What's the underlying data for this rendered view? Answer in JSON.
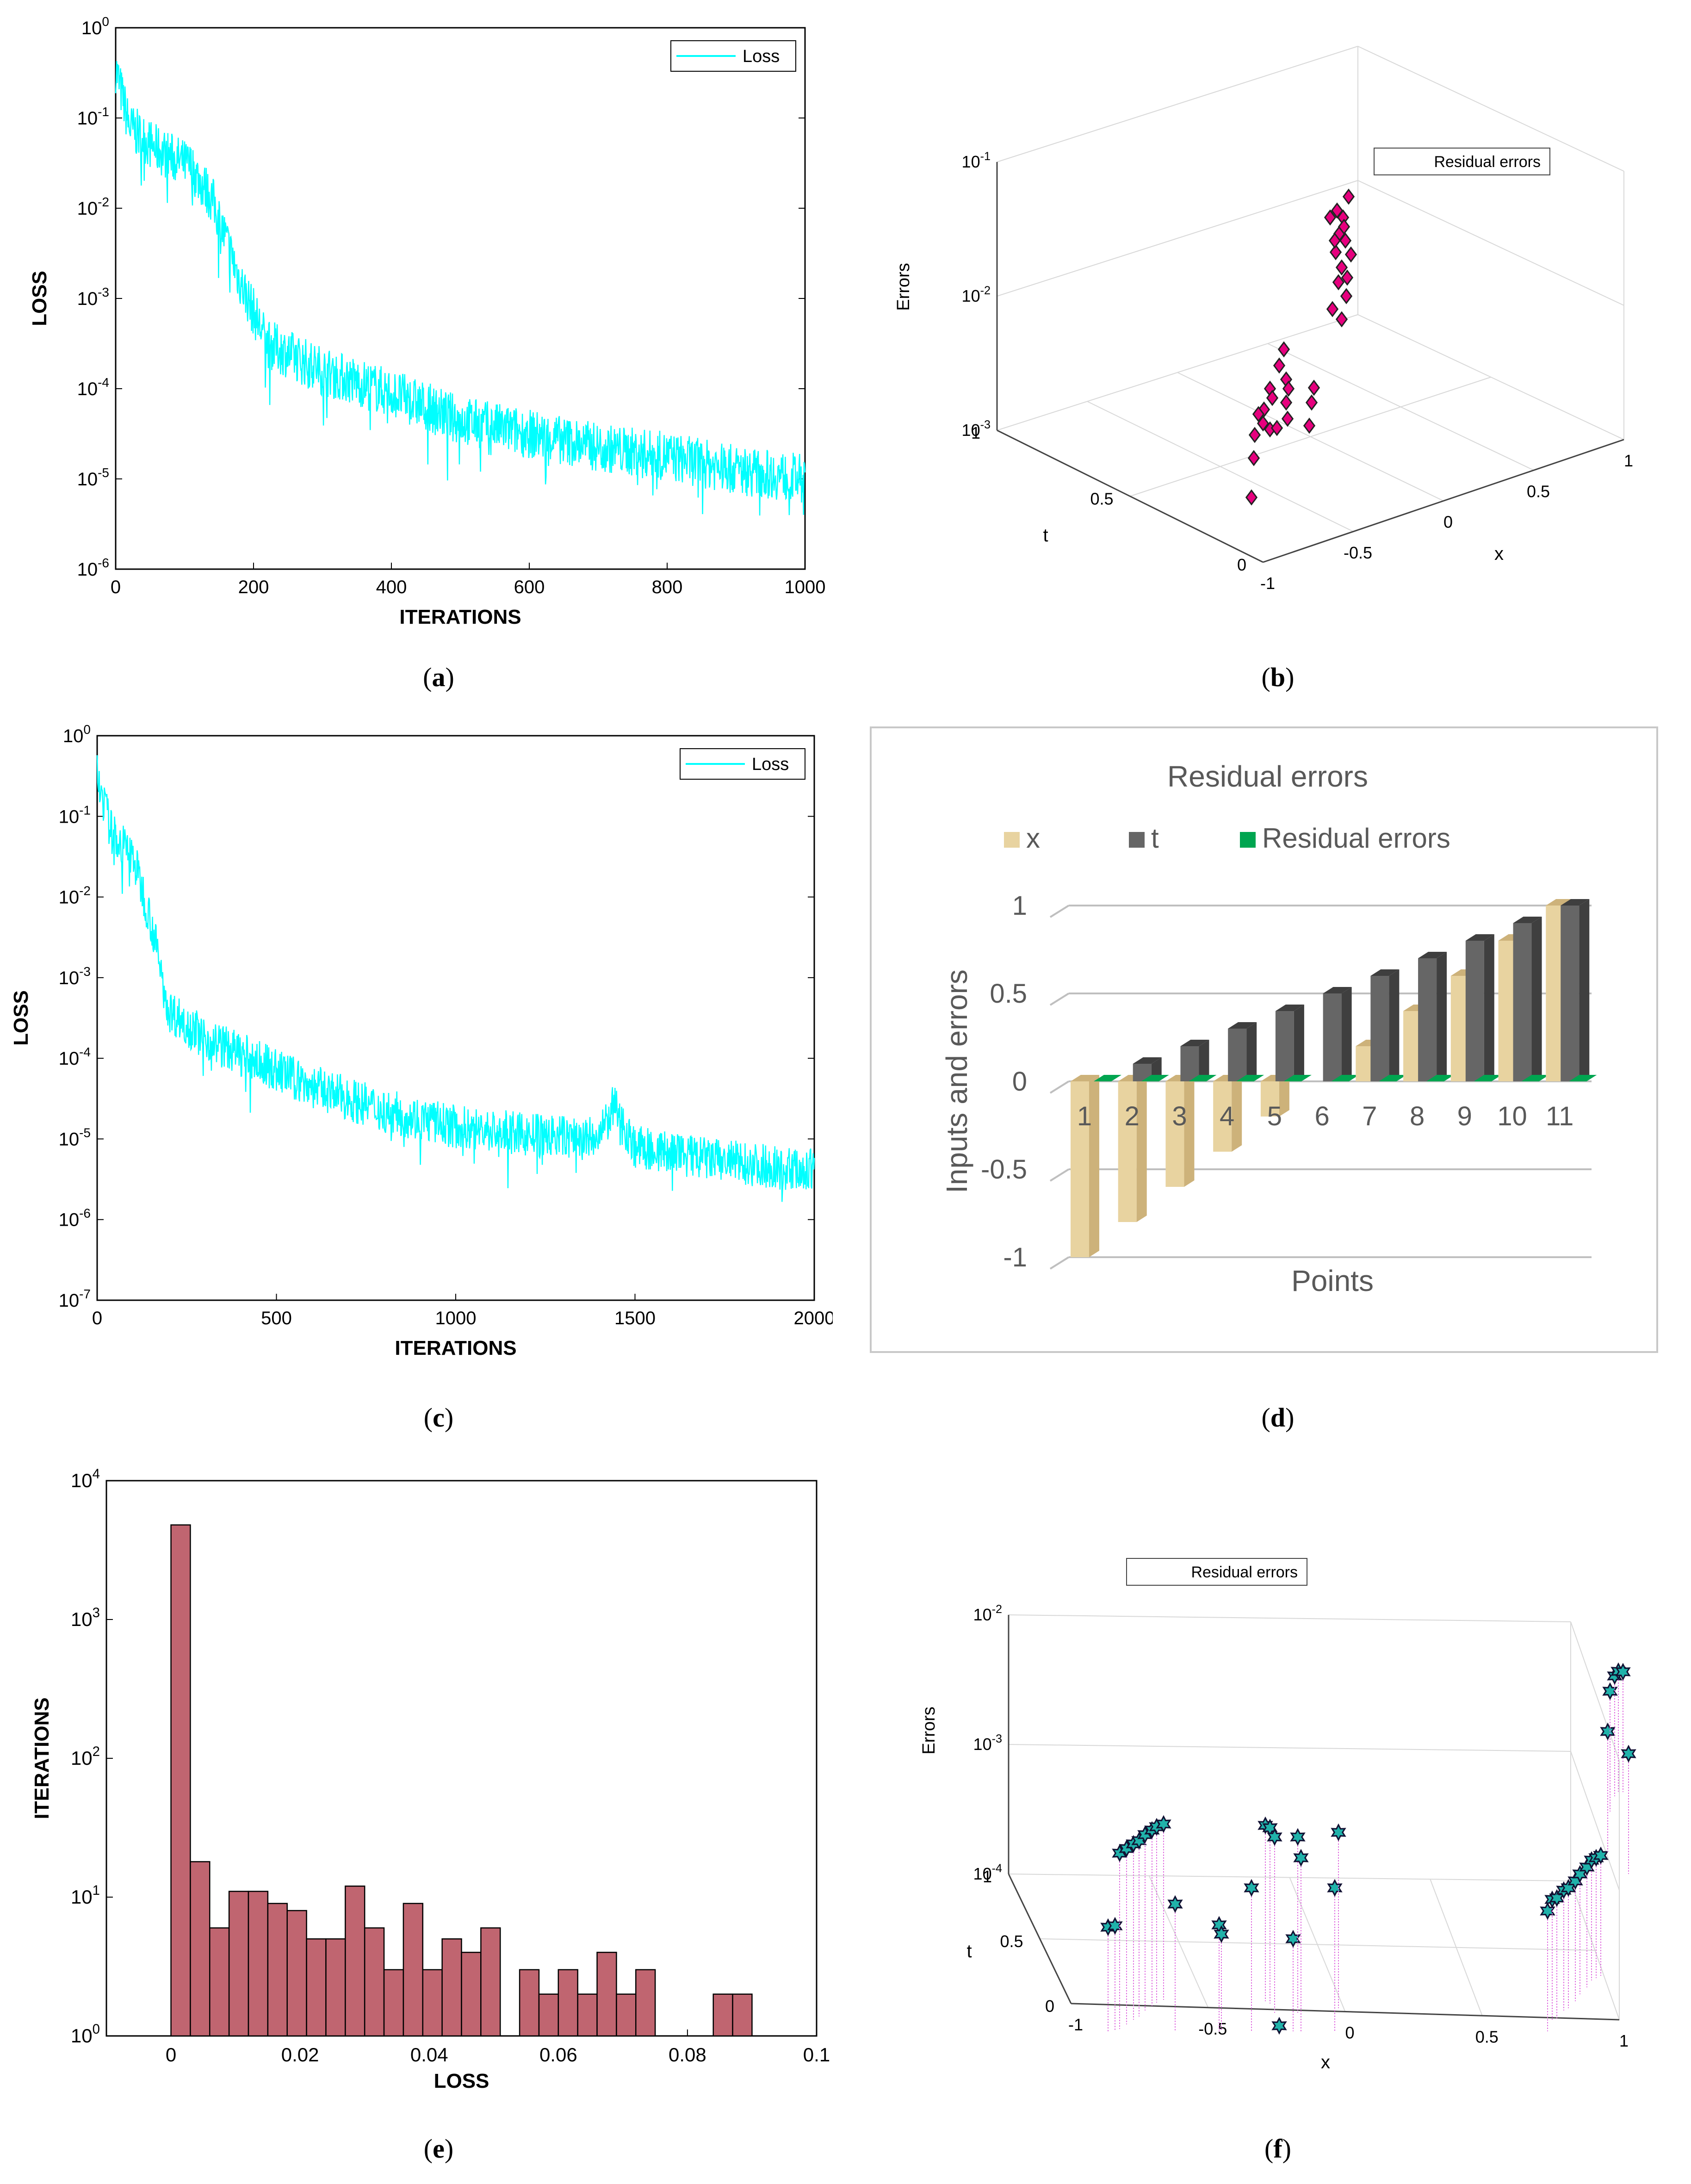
{
  "captions": {
    "a": "a",
    "b": "b",
    "c": "c",
    "d": "d",
    "e": "e",
    "f": "f"
  },
  "chart_data": [
    {
      "id": "a",
      "type": "line",
      "scale_y": "log",
      "title": "",
      "xlabel": "ITERATIONS",
      "ylabel": "LOSS",
      "xlim": [
        0,
        1000
      ],
      "ylim_exp": [
        -6,
        0
      ],
      "x_ticks": [
        "0",
        "200",
        "400",
        "600",
        "800",
        "1000"
      ],
      "y_tick_exps": [
        "0",
        "-1",
        "-2",
        "-3",
        "-4",
        "-5",
        "-6"
      ],
      "legend": "Loss",
      "legend_position": "top-right",
      "color": "#00FFFF",
      "trend": [
        {
          "x": 0,
          "log10y": -0.45
        },
        {
          "x": 20,
          "log10y": -1.1
        },
        {
          "x": 60,
          "log10y": -1.35
        },
        {
          "x": 110,
          "log10y": -1.55
        },
        {
          "x": 140,
          "log10y": -1.9
        },
        {
          "x": 180,
          "log10y": -2.8
        },
        {
          "x": 220,
          "log10y": -3.5
        },
        {
          "x": 300,
          "log10y": -3.8
        },
        {
          "x": 400,
          "log10y": -4.05
        },
        {
          "x": 500,
          "log10y": -4.35
        },
        {
          "x": 600,
          "log10y": -4.5
        },
        {
          "x": 700,
          "log10y": -4.65
        },
        {
          "x": 800,
          "log10y": -4.75
        },
        {
          "x": 900,
          "log10y": -4.9
        },
        {
          "x": 1000,
          "log10y": -5.0
        }
      ]
    },
    {
      "id": "b",
      "type": "scatter3d",
      "title": "",
      "zlabel": "Errors",
      "xlabel": "x",
      "ylabel": "t",
      "z_tick_exps": [
        "-1",
        "-2",
        "-3"
      ],
      "x_ticks": [
        "-1",
        "-0.5",
        "0",
        "0.5",
        "1"
      ],
      "t_ticks": [
        "0",
        "0.5",
        "1"
      ],
      "legend": "Residual errors",
      "legend_position": "top-right",
      "marker": "diamond",
      "color": "#E6007E"
    },
    {
      "id": "c",
      "type": "line",
      "scale_y": "log",
      "title": "",
      "xlabel": "ITERATIONS",
      "ylabel": "LOSS",
      "xlim": [
        0,
        2000
      ],
      "ylim_exp": [
        -7,
        0
      ],
      "x_ticks": [
        "0",
        "500",
        "1000",
        "1500",
        "2000"
      ],
      "y_tick_exps": [
        "0",
        "-1",
        "-2",
        "-3",
        "-4",
        "-5",
        "-6",
        "-7"
      ],
      "legend": "Loss",
      "legend_position": "top-right",
      "color": "#00FFFF",
      "trend": [
        {
          "x": 0,
          "log10y": -0.5
        },
        {
          "x": 40,
          "log10y": -1.2
        },
        {
          "x": 100,
          "log10y": -1.5
        },
        {
          "x": 150,
          "log10y": -2.3
        },
        {
          "x": 200,
          "log10y": -3.4
        },
        {
          "x": 300,
          "log10y": -3.75
        },
        {
          "x": 450,
          "log10y": -4.05
        },
        {
          "x": 600,
          "log10y": -4.35
        },
        {
          "x": 800,
          "log10y": -4.65
        },
        {
          "x": 1000,
          "log10y": -4.85
        },
        {
          "x": 1200,
          "log10y": -4.95
        },
        {
          "x": 1400,
          "log10y": -5.0
        },
        {
          "x": 1440,
          "log10y": -4.6
        },
        {
          "x": 1500,
          "log10y": -5.1
        },
        {
          "x": 1700,
          "log10y": -5.25
        },
        {
          "x": 2000,
          "log10y": -5.4
        }
      ]
    },
    {
      "id": "d",
      "type": "bar",
      "title": "Residual errors",
      "xlabel": "Points",
      "ylabel": "Inputs and errors",
      "categories": [
        "1",
        "2",
        "3",
        "4",
        "5",
        "6",
        "7",
        "8",
        "9",
        "10",
        "11"
      ],
      "y_ticks": [
        "1",
        "0.5",
        "0",
        "-0.5",
        "-1"
      ],
      "ylim": [
        -1,
        1
      ],
      "series": [
        {
          "name": "x",
          "color": "#E8D3A0",
          "values": [
            -1,
            -0.8,
            -0.6,
            -0.4,
            -0.2,
            0,
            0.2,
            0.4,
            0.6,
            0.8,
            1
          ]
        },
        {
          "name": "t",
          "color": "#666666",
          "values": [
            0,
            0.1,
            0.2,
            0.3,
            0.4,
            0.5,
            0.6,
            0.7,
            0.8,
            0.9,
            1
          ]
        },
        {
          "name": "Residual errors",
          "color": "#00A550",
          "values": [
            0,
            0,
            0,
            0,
            0,
            0,
            0,
            0,
            0,
            0,
            0
          ]
        }
      ]
    },
    {
      "id": "e",
      "type": "bar",
      "scale_y": "log",
      "title": "",
      "xlabel": "LOSS",
      "ylabel": "ITERATIONS",
      "x_ticks": [
        "0",
        "0.02",
        "0.04",
        "0.06",
        "0.08",
        "0.1"
      ],
      "y_tick_exps": [
        "4",
        "3",
        "2",
        "1",
        "0"
      ],
      "color": "#C06570",
      "bins": [
        {
          "x0": 0,
          "x1": 0.003,
          "count": 4800
        },
        {
          "x0": 0.003,
          "x1": 0.006,
          "count": 18
        },
        {
          "x0": 0.006,
          "x1": 0.009,
          "count": 6
        },
        {
          "x0": 0.009,
          "x1": 0.012,
          "count": 11
        },
        {
          "x0": 0.012,
          "x1": 0.015,
          "count": 11
        },
        {
          "x0": 0.015,
          "x1": 0.018,
          "count": 9
        },
        {
          "x0": 0.018,
          "x1": 0.021,
          "count": 8
        },
        {
          "x0": 0.021,
          "x1": 0.024,
          "count": 5
        },
        {
          "x0": 0.024,
          "x1": 0.027,
          "count": 5
        },
        {
          "x0": 0.027,
          "x1": 0.03,
          "count": 12
        },
        {
          "x0": 0.03,
          "x1": 0.033,
          "count": 6
        },
        {
          "x0": 0.033,
          "x1": 0.036,
          "count": 3
        },
        {
          "x0": 0.036,
          "x1": 0.039,
          "count": 9
        },
        {
          "x0": 0.039,
          "x1": 0.042,
          "count": 3
        },
        {
          "x0": 0.042,
          "x1": 0.045,
          "count": 5
        },
        {
          "x0": 0.045,
          "x1": 0.048,
          "count": 4
        },
        {
          "x0": 0.048,
          "x1": 0.051,
          "count": 6
        },
        {
          "x0": 0.054,
          "x1": 0.057,
          "count": 3
        },
        {
          "x0": 0.057,
          "x1": 0.06,
          "count": 2
        },
        {
          "x0": 0.06,
          "x1": 0.063,
          "count": 3
        },
        {
          "x0": 0.063,
          "x1": 0.066,
          "count": 2
        },
        {
          "x0": 0.066,
          "x1": 0.069,
          "count": 4
        },
        {
          "x0": 0.069,
          "x1": 0.072,
          "count": 2
        },
        {
          "x0": 0.072,
          "x1": 0.075,
          "count": 3
        },
        {
          "x0": 0.084,
          "x1": 0.087,
          "count": 2
        },
        {
          "x0": 0.087,
          "x1": 0.09,
          "count": 2
        }
      ]
    },
    {
      "id": "f",
      "type": "scatter3d",
      "title": "",
      "zlabel": "Errors",
      "xlabel": "x",
      "ylabel": "t",
      "z_tick_exps": [
        "-2",
        "-3",
        "-4"
      ],
      "x_ticks": [
        "-1",
        "-0.5",
        "0",
        "0.5",
        "1"
      ],
      "t_ticks": [
        "0",
        "0.5",
        "1"
      ],
      "legend": "Residual errors",
      "legend_position": "top-left",
      "marker": "hexagram",
      "color": "#20B2AA"
    }
  ]
}
